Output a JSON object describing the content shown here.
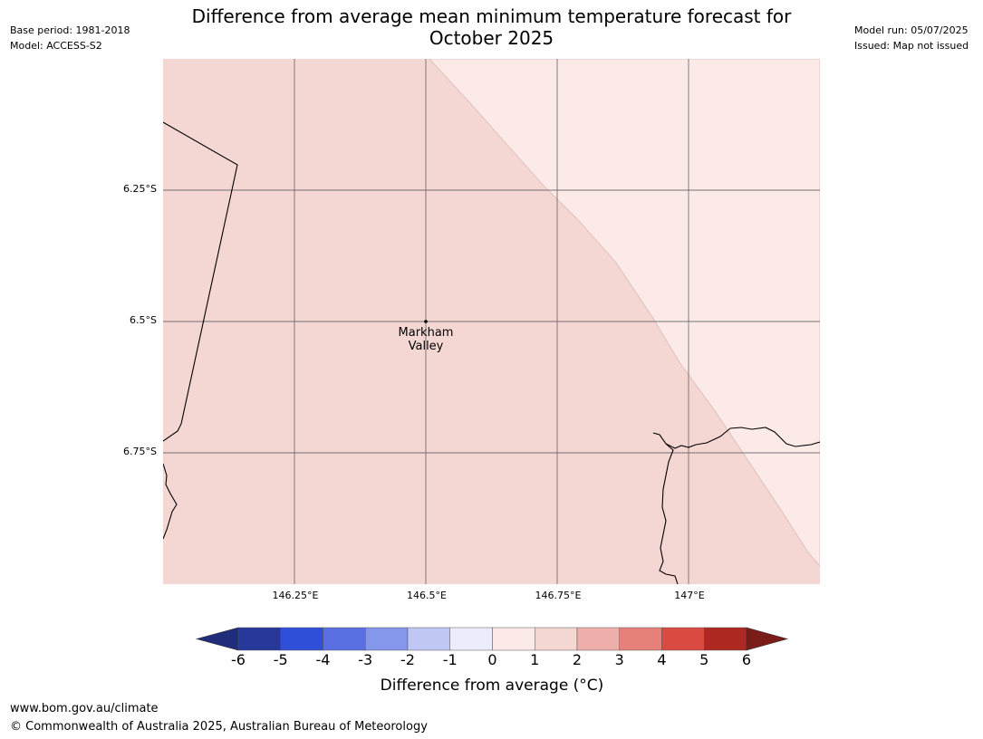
{
  "header": {
    "title_line1": "Difference from average mean minimum temperature forecast for",
    "title_line2": "October 2025",
    "base_period": "Base period: 1981-2018",
    "model": "Model: ACCESS-S2",
    "model_run": "Model run: 05/07/2025",
    "issued": "Issued: Map not issued"
  },
  "map": {
    "lat_ticks": [
      "6.25°S",
      "6.5°S",
      "6.75°S"
    ],
    "lon_ticks": [
      "146.25°E",
      "146.5°E",
      "146.75°E",
      "147°E"
    ],
    "place": {
      "name_line1": "Markham",
      "name_line2": "Valley"
    },
    "fill_colors": {
      "category_1_2": "#f4d6d3",
      "category_0_1": "#fbeae8"
    }
  },
  "colorbar": {
    "labels": [
      "-6",
      "-5",
      "-4",
      "-3",
      "-2",
      "-1",
      "0",
      "1",
      "2",
      "3",
      "4",
      "5",
      "6"
    ],
    "colors": [
      "#26399b",
      "#2f4fd8",
      "#5a70e2",
      "#8597eb",
      "#c0c7f4",
      "#ebedfc",
      "#fbeae8",
      "#f4d6d3",
      "#eeafaa",
      "#e6807b",
      "#db4a40",
      "#ac2821"
    ],
    "under_color": "#1f2d7a",
    "over_color": "#7a1d18",
    "title": "Difference from average (°C)"
  },
  "footer": {
    "url": "www.bom.gov.au/climate",
    "copyright": "© Commonwealth of Australia 2025, Australian Bureau of Meteorology"
  }
}
